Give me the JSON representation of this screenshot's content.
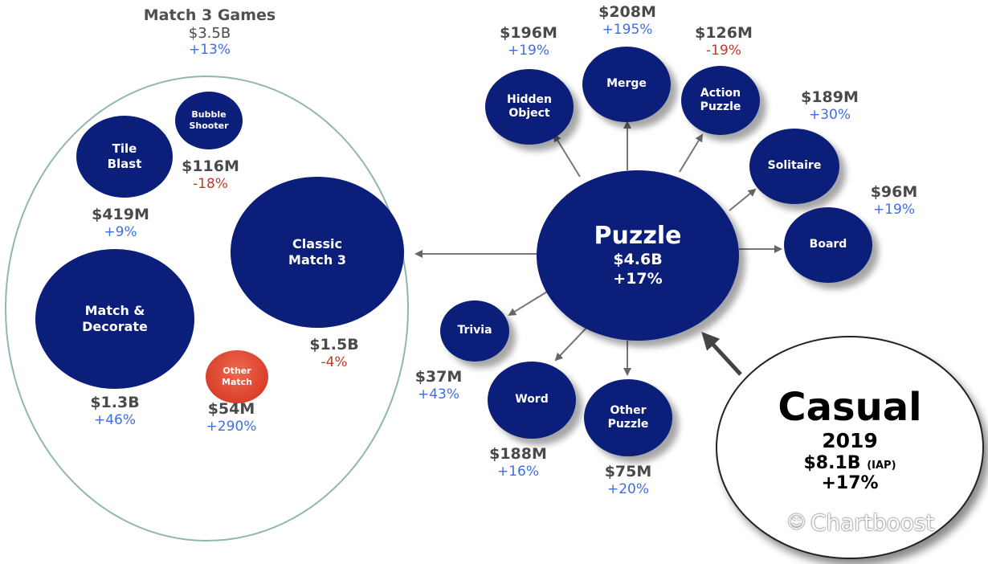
{
  "match3": {
    "title": "Match 3 Games",
    "value": "$3.5B",
    "growth": "+13%",
    "nodes": {
      "tile_blast": {
        "label": "Tile Blast",
        "value": "$419M",
        "growth": "+9%"
      },
      "bubble_shooter": {
        "label": "Bubble Shooter",
        "value": "$116M",
        "growth": "-18%"
      },
      "classic_match3": {
        "label": "Classic Match 3",
        "value": "$1.5B",
        "growth": "-4%"
      },
      "match_decorate": {
        "label": "Match & Decorate",
        "value": "$1.3B",
        "growth": "+46%"
      },
      "other_match": {
        "label": "Other Match",
        "value": "$54M",
        "growth": "+290%"
      }
    }
  },
  "puzzle": {
    "label": "Puzzle",
    "value": "$4.6B",
    "growth": "+17%",
    "nodes": {
      "hidden_object": {
        "label": "Hidden Object",
        "value": "$196M",
        "growth": "+19%"
      },
      "merge": {
        "label": "Merge",
        "value": "$208M",
        "growth": "+195%"
      },
      "action_puzzle": {
        "label": "Action Puzzle",
        "value": "$126M",
        "growth": "-19%"
      },
      "solitaire": {
        "label": "Solitaire",
        "value": "$189M",
        "growth": "+30%"
      },
      "board": {
        "label": "Board",
        "value": "$96M",
        "growth": "+19%"
      },
      "trivia": {
        "label": "Trivia",
        "value": "$37M",
        "growth": "+43%"
      },
      "word": {
        "label": "Word",
        "value": "$188M",
        "growth": "+16%"
      },
      "other_puzzle": {
        "label": "Other Puzzle",
        "value": "$75M",
        "growth": "+20%"
      }
    }
  },
  "casual": {
    "label": "Casual",
    "year": "2019",
    "value": "$8.1B",
    "value_note": "(IAP)",
    "growth": "+17%"
  },
  "watermark": {
    "icon": "wechat-icon",
    "text": "Chartboost"
  },
  "colors": {
    "navy": "#0b1f7a",
    "orange": "#d9402a",
    "positive": "#3f6ee0",
    "negative": "#c0392b",
    "ring": "#8fb5b5"
  }
}
